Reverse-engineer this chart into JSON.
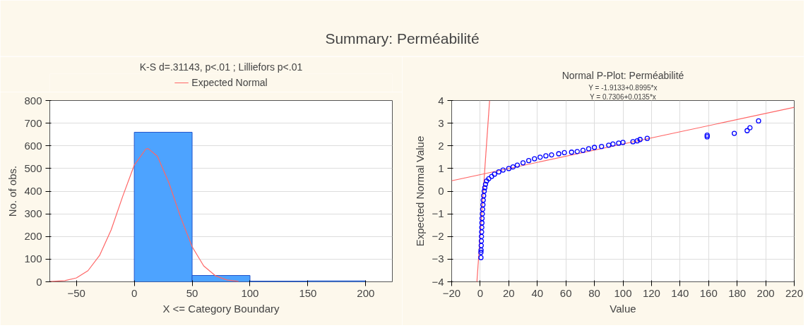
{
  "chart_data": [
    {
      "type": "other",
      "title": "Summary: Perméabilité"
    },
    {
      "type": "histogram",
      "title": "K-S d=.31143, p<.01 ; Lilliefors p<.01",
      "xlabel": "X <= Category Boundary",
      "ylabel": "No. of obs.",
      "bins": [
        0,
        50,
        100,
        150,
        200
      ],
      "values": [
        660,
        28,
        3,
        4
      ],
      "color": "#4da3ff",
      "series": [
        {
          "name": "Expected Normal",
          "type": "line",
          "color": "#ff6666",
          "x": [
            -73,
            -60,
            -50,
            -40,
            -30,
            -20,
            -10,
            0,
            10,
            12,
            20,
            30,
            40,
            50,
            60,
            70,
            80,
            90
          ],
          "values": [
            1,
            5,
            17,
            49,
            116,
            229,
            377,
            515,
            586,
            588,
            554,
            436,
            286,
            155,
            70,
            27,
            8,
            2
          ]
        }
      ],
      "xlim": [
        -73,
        223
      ],
      "xticks": [
        -50,
        0,
        50,
        100,
        150,
        200
      ],
      "ylim": [
        0,
        800
      ],
      "yticks": [
        0,
        100,
        200,
        300,
        400,
        500,
        600,
        700,
        800
      ],
      "grid": "y",
      "legend": "top"
    },
    {
      "type": "scatter",
      "title": "Normal P-Plot: Perméabilité",
      "annotations": [
        "Y = -1.9133+0.8995*x",
        "Y = 0.7306+0.0135*x"
      ],
      "xlabel": "Value",
      "ylabel": "Expected Normal Value",
      "series": [
        {
          "type": "line",
          "color": "#ff6666",
          "x": [
            -2.32,
            6.57
          ],
          "values": [
            -4,
            4
          ]
        },
        {
          "type": "line",
          "color": "#ff6666",
          "x": [
            -20,
            220
          ],
          "values": [
            0.46,
            3.7
          ]
        },
        {
          "type": "scatter",
          "color": "#0000ff",
          "marker": "circle",
          "x": [
            0.5,
            0.5,
            0.6,
            0.7,
            0.8,
            0.9,
            1.0,
            1.1,
            1.2,
            1.3,
            1.5,
            1.7,
            1.9,
            2.1,
            2.4,
            2.8,
            3.2,
            3.7,
            4.5,
            6,
            8,
            10,
            13,
            16,
            20,
            23,
            26,
            30,
            34,
            38,
            42,
            46,
            50,
            55,
            59,
            64,
            68,
            72,
            76,
            80,
            85,
            90,
            93,
            97,
            100,
            107,
            110,
            112,
            117,
            159,
            159,
            178,
            187,
            189,
            195
          ],
          "values": [
            -2.93,
            -2.7,
            -2.6,
            -2.4,
            -2.2,
            -2.0,
            -1.8,
            -1.6,
            -1.4,
            -1.2,
            -1.0,
            -0.8,
            -0.6,
            -0.4,
            -0.2,
            0.0,
            0.15,
            0.3,
            0.45,
            0.55,
            0.65,
            0.75,
            0.85,
            0.93,
            1.0,
            1.07,
            1.15,
            1.25,
            1.35,
            1.43,
            1.5,
            1.56,
            1.6,
            1.65,
            1.7,
            1.72,
            1.75,
            1.8,
            1.87,
            1.93,
            1.97,
            2.03,
            2.08,
            2.12,
            2.15,
            2.18,
            2.22,
            2.28,
            2.33,
            2.4,
            2.47,
            2.55,
            2.67,
            2.8,
            3.1
          ]
        }
      ],
      "xlim": [
        -20,
        220
      ],
      "xticks": [
        -20,
        0,
        20,
        40,
        60,
        80,
        100,
        120,
        140,
        160,
        180,
        200,
        220
      ],
      "ylim": [
        -4,
        4
      ],
      "yticks": [
        -4,
        -3,
        -2,
        -1,
        0,
        1,
        2,
        3,
        4
      ],
      "grid": true
    }
  ]
}
